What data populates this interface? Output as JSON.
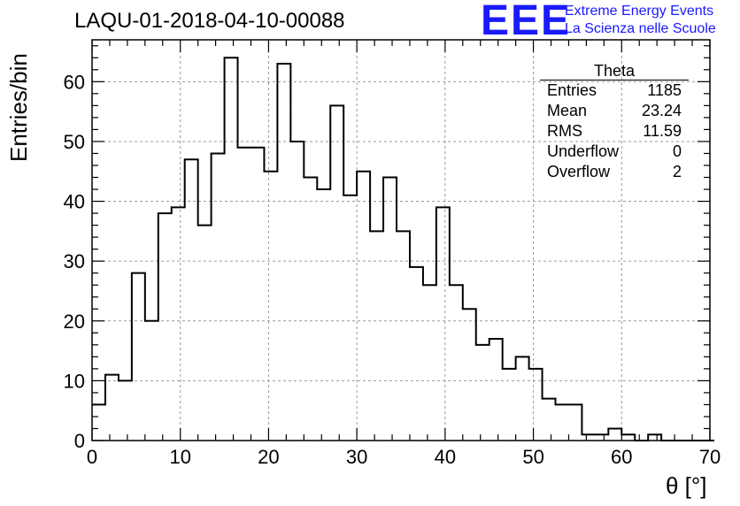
{
  "title": "LAQU-01-2018-04-10-00088",
  "logo": {
    "text": "EEE",
    "line1": "Extreme Energy Events",
    "line2": "La Scienza nelle Scuole",
    "color": "#1a1aff"
  },
  "stats": {
    "name": "Theta",
    "rows": [
      {
        "label": "Entries",
        "value": "1185"
      },
      {
        "label": "Mean",
        "value": "23.24"
      },
      {
        "label": "RMS",
        "value": "11.59"
      },
      {
        "label": "Underflow",
        "value": "0"
      },
      {
        "label": "Overflow",
        "value": "2"
      }
    ]
  },
  "chart_data": {
    "type": "histogram",
    "title": "LAQU-01-2018-04-10-00088",
    "xlabel": "θ [°]",
    "ylabel": "Entries/bin",
    "xlim": [
      0,
      70
    ],
    "ylim": [
      0,
      67
    ],
    "bin_width": 1.5,
    "bin_start": 0,
    "values": [
      6,
      11,
      10,
      28,
      20,
      38,
      39,
      47,
      36,
      48,
      64,
      49,
      49,
      45,
      63,
      50,
      44,
      42,
      56,
      41,
      45,
      35,
      44,
      35,
      29,
      26,
      39,
      26,
      22,
      16,
      17,
      12,
      14,
      12,
      7,
      6,
      6,
      1,
      1,
      2,
      1,
      0,
      1,
      0,
      0,
      0,
      0
    ],
    "xticks": [
      0,
      10,
      20,
      30,
      40,
      50,
      60,
      70
    ],
    "yticks": [
      0,
      10,
      20,
      30,
      40,
      50,
      60
    ],
    "grid": true,
    "line_color": "#000000"
  }
}
